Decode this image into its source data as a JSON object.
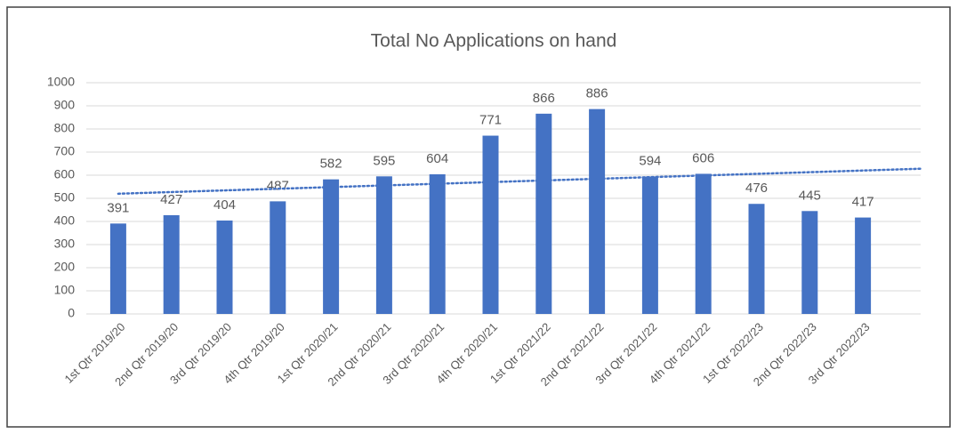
{
  "chart_data": {
    "type": "bar",
    "title": "Total No Applications on hand",
    "categories": [
      "1st Qtr 2019/20",
      "2nd Qtr 2019/20",
      "3rd Qtr 2019/20",
      "4th Qtr 2019/20",
      "1st Qtr 2020/21",
      "2nd Qtr 2020/21",
      "3rd Qtr 2020/21",
      "4th Qtr 2020/21",
      "1st Qtr 2021/22",
      "2nd Qtr 2021/22",
      "3rd Qtr 2021/22",
      "4th Qtr 2021/22",
      "1st Qtr 2022/23",
      "2nd Qtr 2022/23",
      "3rd Qtr 2022/23"
    ],
    "values": [
      391,
      427,
      404,
      487,
      582,
      595,
      604,
      771,
      866,
      886,
      594,
      606,
      476,
      445,
      417
    ],
    "color": "#4472c4",
    "ylim": [
      0,
      1000
    ],
    "yticks": [
      0,
      100,
      200,
      300,
      400,
      500,
      600,
      700,
      800,
      900,
      1000
    ],
    "grid": true,
    "trendline": "linear"
  }
}
